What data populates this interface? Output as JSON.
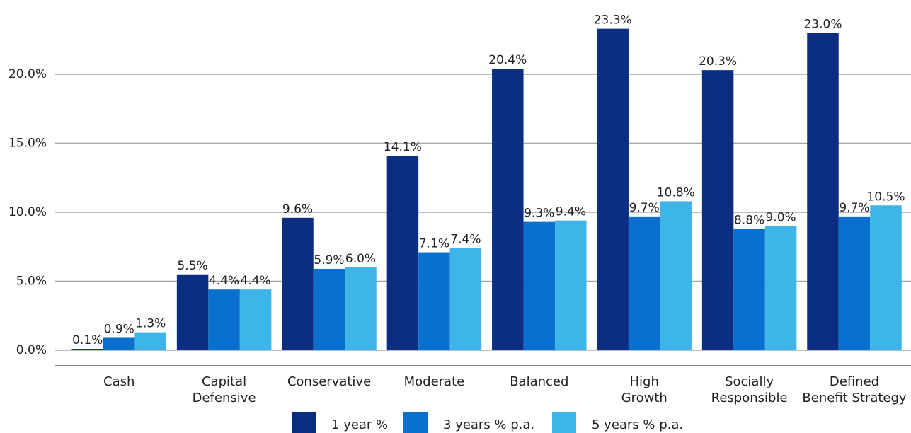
{
  "chart_data": {
    "type": "bar",
    "categories": [
      "Cash",
      "Capital\nDefensive",
      "Conservative",
      "Moderate",
      "Balanced",
      "High\nGrowth",
      "Socially\nResponsible",
      "Defined\nBenefit Strategy"
    ],
    "series": [
      {
        "name": "1 year %",
        "color": "#0b2e83",
        "values": [
          0.1,
          5.5,
          9.6,
          14.1,
          20.4,
          23.3,
          20.3,
          23.0
        ],
        "value_labels": [
          "0.1%",
          "5.5%",
          "9.6%",
          "14.1%",
          "20.4%",
          "23.3%",
          "20.3%",
          "23.0%"
        ]
      },
      {
        "name": "3 years % p.a.",
        "color": "#0a70d0",
        "values": [
          0.9,
          4.4,
          5.9,
          7.1,
          9.3,
          9.7,
          8.8,
          9.7
        ],
        "value_labels": [
          "0.9%",
          "4.4%",
          "5.9%",
          "7.1%",
          "9.3%",
          "9.7%",
          "8.8%",
          "9.7%"
        ]
      },
      {
        "name": "5 years % p.a.",
        "color": "#3db5e8",
        "values": [
          1.3,
          4.4,
          6.0,
          7.4,
          9.4,
          10.8,
          9.0,
          10.5
        ],
        "value_labels": [
          "1.3%",
          "4.4%",
          "6.0%",
          "7.4%",
          "9.4%",
          "10.8%",
          "9.0%",
          "10.5%"
        ]
      }
    ],
    "ylim": [
      0,
      25
    ],
    "yticks": [
      {
        "value": 0,
        "label": "0.0%"
      },
      {
        "value": 5,
        "label": "5.0%"
      },
      {
        "value": 10,
        "label": "10.0%"
      },
      {
        "value": 15,
        "label": "15.0%"
      },
      {
        "value": 20,
        "label": "20.0%"
      }
    ],
    "grid": true
  }
}
